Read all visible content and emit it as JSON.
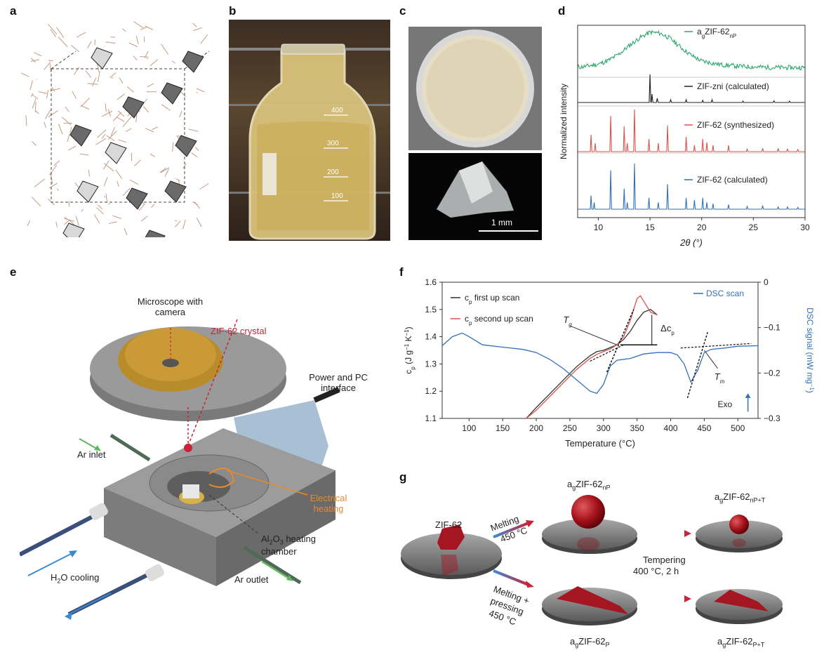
{
  "panels": {
    "a": {
      "letter": "a"
    },
    "b": {
      "letter": "b",
      "beaker_marks": [
        "400",
        "300",
        "200",
        "100"
      ]
    },
    "c": {
      "letter": "c",
      "scale_bar": "1 mm"
    },
    "d": {
      "letter": "d"
    },
    "e": {
      "letter": "e",
      "labels": {
        "microscope": "Microscope with camera",
        "crystal": "ZIF-62 crystal",
        "power": "Power and PC interface",
        "ar_inlet": "Ar inlet",
        "heating": "Electrical heating",
        "chamber_a": "Al",
        "chamber_sub1": "2",
        "chamber_b": "O",
        "chamber_sub2": "3",
        "chamber_c": " heating chamber",
        "cooling_a": "H",
        "cooling_sub": "2",
        "cooling_b": "O cooling",
        "ar_outlet": "Ar outlet"
      }
    },
    "f": {
      "letter": "f"
    },
    "g": {
      "letter": "g",
      "labels": {
        "zif62": "ZIF-62",
        "melting": "Melting",
        "melting_temp": "450 °C",
        "melt_press_1": "Melting +",
        "melt_press_2": "pressing",
        "melt_press_3": "450 °C",
        "tempering_1": "Tempering",
        "tempering_2": "400 °C, 2 h",
        "agnp": {
          "pre": "a",
          "sub1": "g",
          "main": "ZIF-62",
          "sub2": "nP"
        },
        "agnpt": {
          "pre": "a",
          "sub1": "g",
          "main": "ZIF-62",
          "sub2": "nP+T"
        },
        "agp": {
          "pre": "a",
          "sub1": "g",
          "main": "ZIF-62",
          "sub2": "P"
        },
        "agpt": {
          "pre": "a",
          "sub1": "g",
          "main": "ZIF-62",
          "sub2": "P+T"
        }
      }
    }
  },
  "chart_data": [
    {
      "type": "line",
      "panel": "d",
      "xlabel": "2θ (°)",
      "ylabel": "Normalized intensity",
      "xlim": [
        8,
        30
      ],
      "xticks": [
        10,
        15,
        20,
        25,
        30
      ],
      "colors": {
        "agnp": "#2aa86a",
        "zni": "#222222",
        "synth": "#d9534f",
        "calc": "#3470b6"
      },
      "series": [
        {
          "name": "agZIF-62nP",
          "legend": {
            "pre": "a",
            "sub1": "g",
            "main": "ZIF-62",
            "sub2": "nP"
          },
          "x": [
            8.5,
            10,
            11,
            12,
            13,
            14,
            15,
            16,
            17,
            18,
            19,
            20,
            22,
            24,
            26,
            28,
            30
          ],
          "y": [
            0.05,
            0.12,
            0.22,
            0.38,
            0.6,
            0.8,
            0.95,
            0.92,
            0.78,
            0.55,
            0.35,
            0.2,
            0.1,
            0.06,
            0.04,
            0.03,
            0.03
          ]
        },
        {
          "name": "ZIF-zni (calculated)",
          "peaks": [
            [
              15.0,
              1.0
            ],
            [
              15.2,
              0.3
            ],
            [
              15.7,
              0.15
            ],
            [
              17.0,
              0.1
            ],
            [
              18.5,
              0.1
            ],
            [
              20.1,
              0.08
            ],
            [
              21.0,
              0.1
            ],
            [
              24.0,
              0.05
            ],
            [
              27.0,
              0.06
            ],
            [
              28.5,
              0.05
            ]
          ]
        },
        {
          "name": "ZIF-62 (synthesized)",
          "peaks": [
            [
              9.3,
              0.4
            ],
            [
              9.7,
              0.2
            ],
            [
              11.2,
              0.85
            ],
            [
              12.5,
              0.6
            ],
            [
              12.8,
              0.2
            ],
            [
              13.5,
              1.0
            ],
            [
              14.9,
              0.3
            ],
            [
              15.8,
              0.2
            ],
            [
              16.7,
              0.62
            ],
            [
              18.5,
              0.35
            ],
            [
              19.3,
              0.15
            ],
            [
              20.1,
              0.3
            ],
            [
              20.5,
              0.22
            ],
            [
              21.1,
              0.15
            ],
            [
              22.6,
              0.15
            ],
            [
              24.4,
              0.06
            ],
            [
              25.9,
              0.08
            ],
            [
              27.4,
              0.08
            ],
            [
              28.3,
              0.06
            ],
            [
              29.3,
              0.05
            ]
          ]
        },
        {
          "name": "ZIF-62 (calculated)",
          "peaks": [
            [
              9.3,
              0.3
            ],
            [
              9.6,
              0.15
            ],
            [
              11.2,
              0.85
            ],
            [
              12.5,
              0.45
            ],
            [
              12.8,
              0.15
            ],
            [
              13.5,
              1.0
            ],
            [
              14.9,
              0.25
            ],
            [
              15.8,
              0.15
            ],
            [
              16.7,
              0.55
            ],
            [
              18.5,
              0.25
            ],
            [
              19.3,
              0.2
            ],
            [
              20.1,
              0.25
            ],
            [
              20.5,
              0.15
            ],
            [
              21.1,
              0.12
            ],
            [
              22.6,
              0.1
            ],
            [
              24.4,
              0.06
            ],
            [
              25.9,
              0.08
            ],
            [
              27.4,
              0.05
            ],
            [
              28.3,
              0.05
            ],
            [
              29.3,
              0.04
            ]
          ]
        }
      ]
    },
    {
      "type": "line",
      "panel": "f",
      "xlabel": "Temperature (°C)",
      "ylabel": {
        "main": "c",
        "sub": "p",
        "rest": " (J g",
        "sup1": "−1",
        "mid": " K",
        "sup2": "−1",
        "end": ")"
      },
      "y2label": {
        "main": "DSC signal (mW mg",
        "sup": "−1",
        "end": ")"
      },
      "xlim": [
        60,
        530
      ],
      "ylim": [
        1.1,
        1.6
      ],
      "y2lim": [
        -0.3,
        0.0
      ],
      "xticks": [
        100,
        150,
        200,
        250,
        300,
        350,
        400,
        450,
        500
      ],
      "yticks": [
        1.1,
        1.2,
        1.3,
        1.4,
        1.5,
        1.6
      ],
      "y2ticks": [
        0,
        -0.1,
        -0.2,
        -0.3
      ],
      "y2ticklabels": [
        "0",
        "−0.1",
        "−0.2",
        "−0.3"
      ],
      "annotations": {
        "tg": "T",
        "tg_sub": "g",
        "tm": "T",
        "tm_sub": "m",
        "dcp": "Δc",
        "dcp_sub": "p",
        "exo": "Exo"
      },
      "series": [
        {
          "name": "cp first up scan",
          "legend": {
            "main": "c",
            "sub": "p",
            "rest": " first up scan"
          },
          "color": "#333333",
          "axis": "left",
          "x": [
            185,
            200,
            220,
            240,
            260,
            280,
            290,
            300,
            310,
            320,
            330,
            340,
            350,
            360,
            370,
            380
          ],
          "y": [
            1.1,
            1.14,
            1.19,
            1.24,
            1.29,
            1.33,
            1.345,
            1.35,
            1.36,
            1.37,
            1.39,
            1.42,
            1.46,
            1.49,
            1.5,
            1.48
          ]
        },
        {
          "name": "cp second up scan",
          "legend": {
            "main": "c",
            "sub": "p",
            "rest": " second up scan"
          },
          "color": "#d9534f",
          "axis": "left",
          "x": [
            185,
            200,
            220,
            240,
            260,
            280,
            290,
            300,
            310,
            320,
            330,
            340,
            350,
            355,
            360,
            370,
            380
          ],
          "y": [
            1.1,
            1.13,
            1.18,
            1.23,
            1.28,
            1.32,
            1.335,
            1.345,
            1.355,
            1.37,
            1.4,
            1.46,
            1.54,
            1.55,
            1.53,
            1.49,
            1.48
          ]
        },
        {
          "name": "DSC scan",
          "legend": {
            "main": "DSC scan"
          },
          "color": "#3470b6",
          "axis": "right",
          "x": [
            60,
            75,
            90,
            100,
            120,
            150,
            180,
            200,
            220,
            240,
            260,
            280,
            290,
            300,
            310,
            320,
            340,
            360,
            380,
            400,
            410,
            420,
            430,
            440,
            450,
            460,
            480,
            500,
            530
          ],
          "y": [
            -0.14,
            -0.12,
            -0.112,
            -0.12,
            -0.138,
            -0.143,
            -0.148,
            -0.155,
            -0.17,
            -0.19,
            -0.215,
            -0.24,
            -0.245,
            -0.225,
            -0.185,
            -0.172,
            -0.168,
            -0.158,
            -0.155,
            -0.155,
            -0.16,
            -0.18,
            -0.22,
            -0.195,
            -0.155,
            -0.148,
            -0.145,
            -0.141,
            -0.14
          ]
        }
      ]
    }
  ]
}
